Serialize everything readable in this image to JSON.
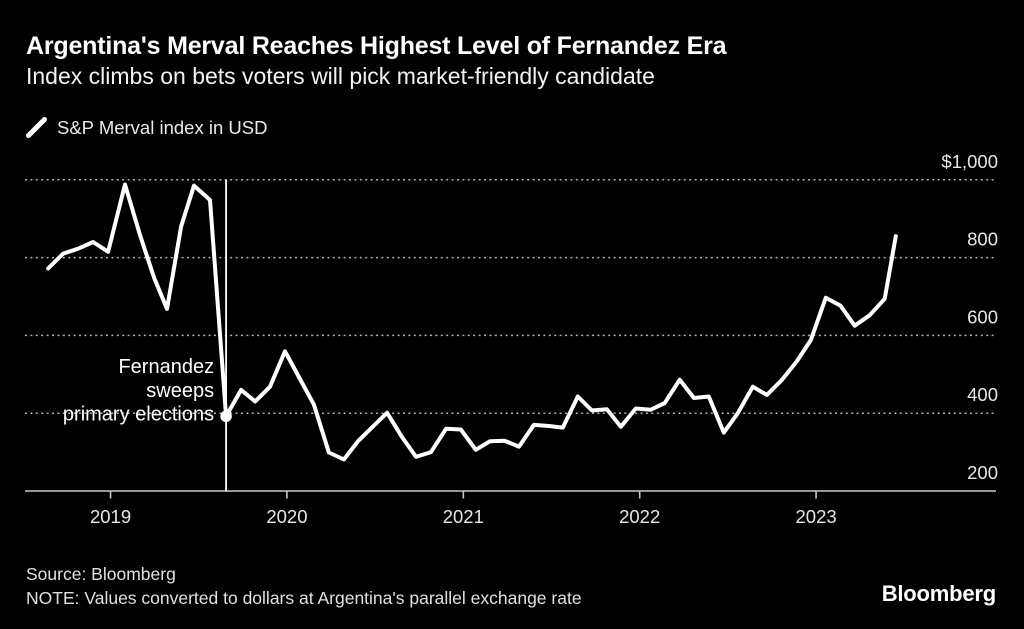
{
  "chart_data": {
    "type": "line",
    "title": "Argentina's Merval Reaches Highest Level of Fernandez Era",
    "subtitle": "Index climbs on bets voters will pick market-friendly candidate",
    "series": [
      {
        "name": "S&P Merval index in USD",
        "color": "#ffffff",
        "points": [
          [
            2018.646,
            772
          ],
          [
            2018.731,
            810
          ],
          [
            2018.816,
            823
          ],
          [
            2018.901,
            840
          ],
          [
            2018.986,
            815
          ],
          [
            2019.082,
            988
          ],
          [
            2019.167,
            858
          ],
          [
            2019.247,
            748
          ],
          [
            2019.32,
            668
          ],
          [
            2019.4,
            880
          ],
          [
            2019.473,
            985
          ],
          [
            2019.564,
            948
          ],
          [
            2019.655,
            392
          ],
          [
            2019.74,
            460
          ],
          [
            2019.82,
            430
          ],
          [
            2019.904,
            468
          ],
          [
            2019.989,
            559
          ],
          [
            2020.074,
            488
          ],
          [
            2020.153,
            422
          ],
          [
            2020.238,
            299
          ],
          [
            2020.323,
            281
          ],
          [
            2020.403,
            328
          ],
          [
            2020.488,
            366
          ],
          [
            2020.568,
            401
          ],
          [
            2020.652,
            339
          ],
          [
            2020.732,
            288
          ],
          [
            2020.817,
            300
          ],
          [
            2020.902,
            360
          ],
          [
            2020.986,
            358
          ],
          [
            2021.071,
            306
          ],
          [
            2021.151,
            328
          ],
          [
            2021.236,
            329
          ],
          [
            2021.315,
            314
          ],
          [
            2021.4,
            370
          ],
          [
            2021.485,
            367
          ],
          [
            2021.564,
            363
          ],
          [
            2021.649,
            443
          ],
          [
            2021.729,
            407
          ],
          [
            2021.814,
            410
          ],
          [
            2021.893,
            365
          ],
          [
            2021.978,
            412
          ],
          [
            2022.063,
            409
          ],
          [
            2022.142,
            426
          ],
          [
            2022.227,
            486
          ],
          [
            2022.307,
            439
          ],
          [
            2022.392,
            443
          ],
          [
            2022.477,
            350
          ],
          [
            2022.556,
            400
          ],
          [
            2022.641,
            468
          ],
          [
            2022.721,
            447
          ],
          [
            2022.805,
            485
          ],
          [
            2022.89,
            533
          ],
          [
            2022.97,
            588
          ],
          [
            2023.055,
            697
          ],
          [
            2023.139,
            676
          ],
          [
            2023.219,
            625
          ],
          [
            2023.304,
            652
          ],
          [
            2023.389,
            694
          ],
          [
            2023.452,
            855
          ]
        ]
      }
    ],
    "x_ticks": [
      2019,
      2020,
      2021,
      2022,
      2023
    ],
    "x_tick_labels": [
      "2019",
      "2020",
      "2021",
      "2022",
      "2023"
    ],
    "y_ticks": [
      1000,
      800,
      600,
      400,
      200
    ],
    "y_tick_labels": [
      "$1,000",
      "800",
      "600",
      "400",
      "200"
    ],
    "ylim": [
      200,
      1000
    ],
    "xlim": [
      2018.515,
      2024.02
    ],
    "grid": "dotted horizontal lines, solid baseline at 200",
    "legend_position": "top-left",
    "annotation": {
      "lines": [
        "Fernandez",
        "sweeps",
        "primary elections"
      ],
      "x": 2019.655,
      "value": 392,
      "marker": "dot-with-vertical-line"
    }
  },
  "footer": {
    "source": "Source: Bloomberg",
    "note": "NOTE: Values converted to dollars at Argentina's parallel exchange rate",
    "logo": "Bloomberg"
  },
  "colors": {
    "background": "#000000",
    "line": "#ffffff",
    "grid_dotted": "#b0b0b0",
    "axis": "#c9c9c9",
    "title_text": "#ffffff",
    "subtitle_text": "#f2f2f2",
    "label_text": "#e6e6e6",
    "annotation_text": "#ffffff",
    "footer_text": "#e0e0e0"
  }
}
